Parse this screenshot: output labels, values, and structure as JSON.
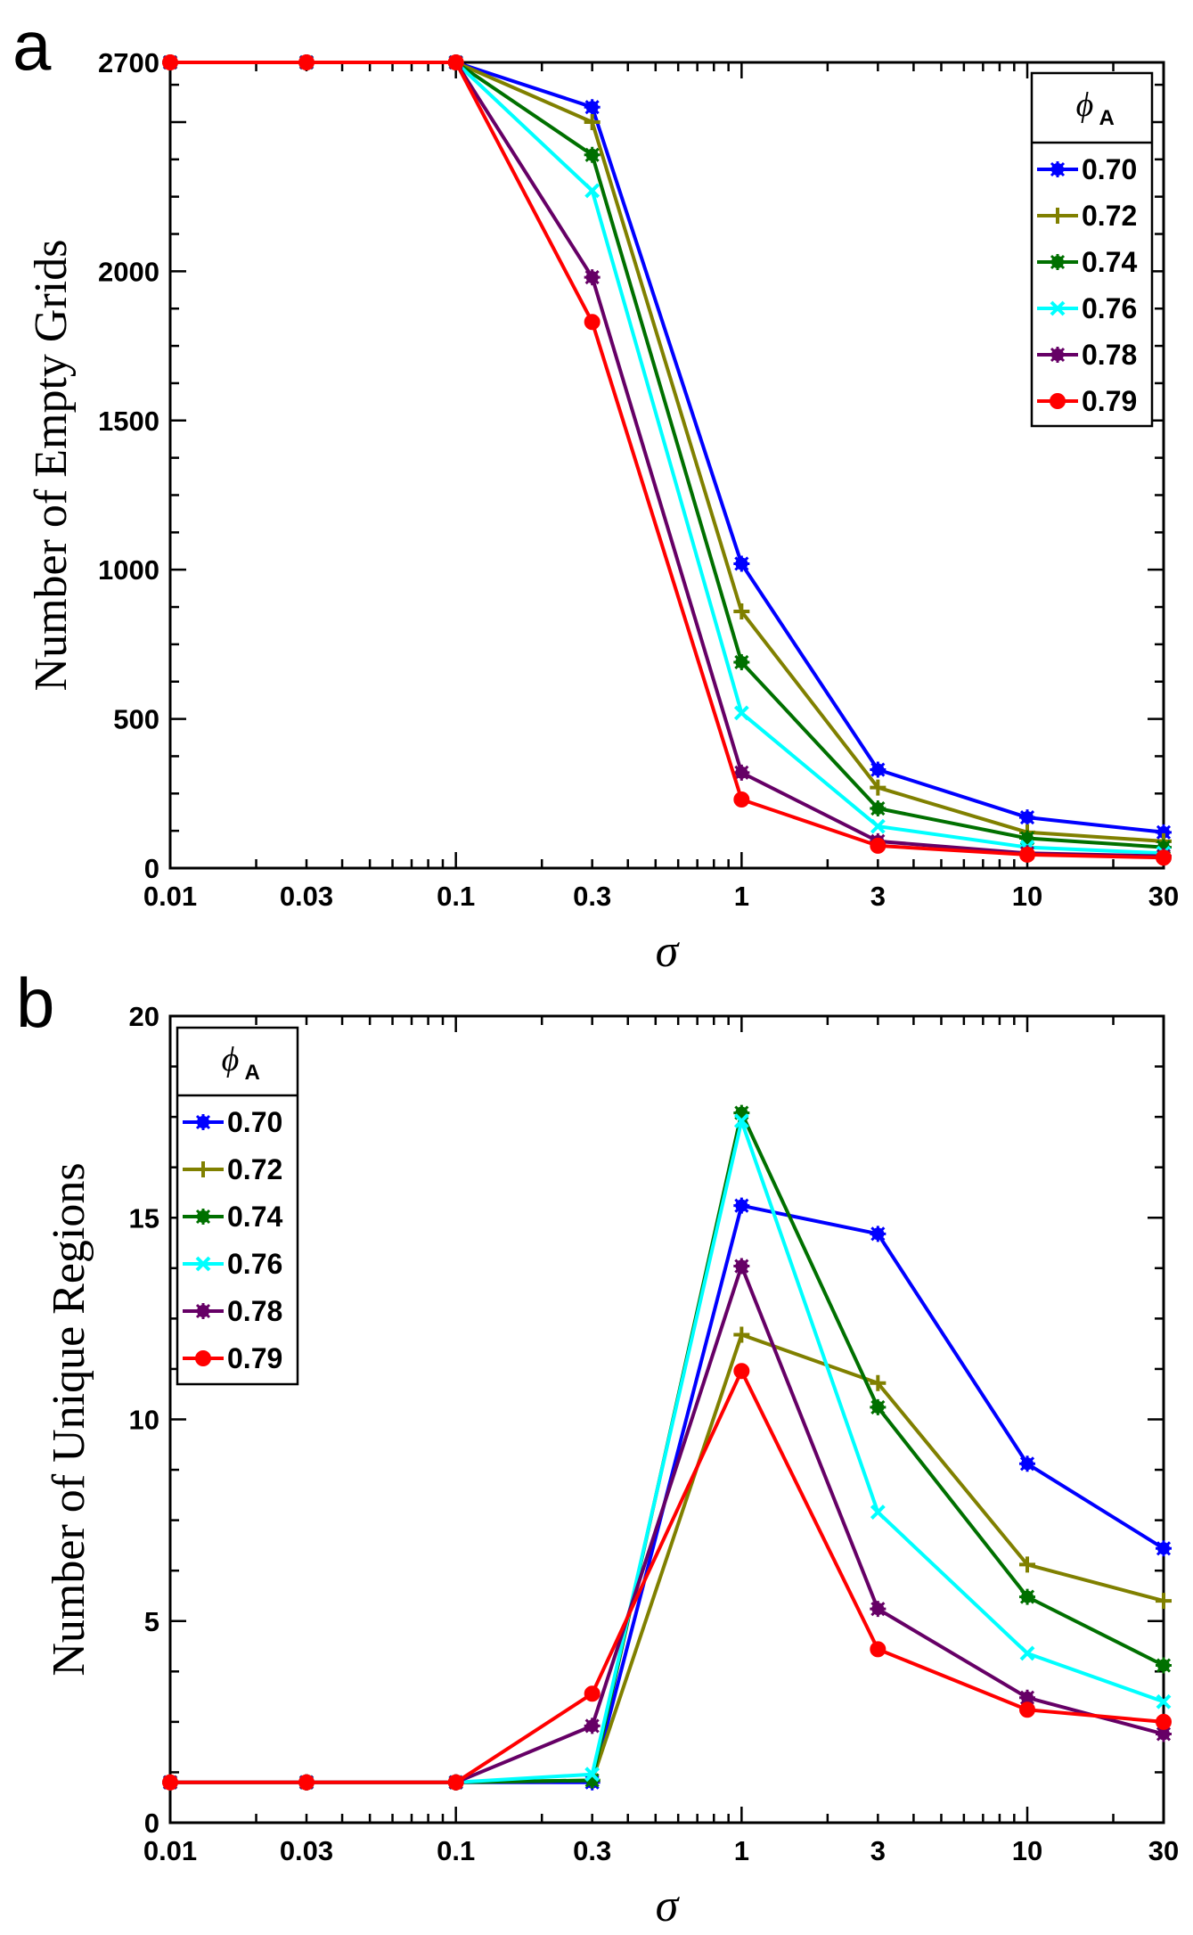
{
  "chart_data": [
    {
      "panel": "a",
      "type": "line",
      "xscale": "log",
      "x": [
        0.01,
        0.03,
        0.1,
        0.3,
        1,
        3,
        10,
        30
      ],
      "xticks": [
        "0.01",
        "0.03",
        "0.1",
        "0.3",
        "1",
        "3",
        "10",
        "30"
      ],
      "xlim": [
        0.01,
        30
      ],
      "ylim": [
        0,
        2700
      ],
      "yticks": [
        "0",
        "500",
        "1000",
        "1500",
        "2000",
        "2700"
      ],
      "ytick_values": [
        0,
        500,
        1000,
        1500,
        2000,
        2700
      ],
      "xlabel": "σ",
      "ylabel": "Number of Empty Grids",
      "legend": {
        "title": "ϕ",
        "title_sub": "A",
        "position": "top-right"
      },
      "series": [
        {
          "name": "0.70",
          "color": "#0000ff",
          "marker": "star",
          "values": [
            2700,
            2700,
            2700,
            2550,
            1020,
            330,
            170,
            120
          ]
        },
        {
          "name": "0.72",
          "color": "#808000",
          "marker": "plus",
          "values": [
            2700,
            2700,
            2700,
            2500,
            860,
            270,
            120,
            90
          ]
        },
        {
          "name": "0.74",
          "color": "#007000",
          "marker": "star",
          "values": [
            2700,
            2700,
            2700,
            2390,
            690,
            200,
            100,
            70
          ]
        },
        {
          "name": "0.76",
          "color": "#00ffff",
          "marker": "x",
          "values": [
            2700,
            2700,
            2700,
            2270,
            520,
            140,
            70,
            50
          ]
        },
        {
          "name": "0.78",
          "color": "#660066",
          "marker": "star",
          "values": [
            2700,
            2700,
            2700,
            1980,
            320,
            90,
            50,
            40
          ]
        },
        {
          "name": "0.79",
          "color": "#ff0000",
          "marker": "circle",
          "values": [
            2700,
            2700,
            2700,
            1830,
            230,
            75,
            45,
            35
          ]
        }
      ]
    },
    {
      "panel": "b",
      "type": "line",
      "xscale": "log",
      "x": [
        0.01,
        0.03,
        0.1,
        0.3,
        1,
        3,
        10,
        30
      ],
      "xticks": [
        "0.01",
        "0.03",
        "0.1",
        "0.3",
        "1",
        "3",
        "10",
        "30"
      ],
      "xlim": [
        0.01,
        30
      ],
      "ylim": [
        0,
        20
      ],
      "yticks": [
        "0",
        "5",
        "10",
        "15",
        "20"
      ],
      "ytick_values": [
        0,
        5,
        10,
        15,
        20
      ],
      "xlabel": "σ",
      "ylabel": "Number of Unique Regions",
      "legend": {
        "title": "ϕ",
        "title_sub": "A",
        "position": "top-left"
      },
      "series": [
        {
          "name": "0.70",
          "color": "#0000ff",
          "marker": "star",
          "values": [
            1,
            1,
            1,
            1,
            15.3,
            14.6,
            8.9,
            6.8
          ]
        },
        {
          "name": "0.72",
          "color": "#808000",
          "marker": "plus",
          "values": [
            1,
            1,
            1,
            1.05,
            12.1,
            10.9,
            6.4,
            5.5
          ]
        },
        {
          "name": "0.74",
          "color": "#007000",
          "marker": "star",
          "values": [
            1,
            1,
            1,
            1.05,
            17.6,
            10.3,
            5.6,
            3.9
          ]
        },
        {
          "name": "0.76",
          "color": "#00ffff",
          "marker": "x",
          "values": [
            1,
            1,
            1,
            1.2,
            17.4,
            7.7,
            4.2,
            3
          ]
        },
        {
          "name": "0.78",
          "color": "#660066",
          "marker": "star",
          "values": [
            1,
            1,
            1,
            2.4,
            13.8,
            5.3,
            3.1,
            2.2
          ]
        },
        {
          "name": "0.79",
          "color": "#ff0000",
          "marker": "circle",
          "values": [
            1,
            1,
            1,
            3.2,
            11.2,
            4.3,
            2.8,
            2.5
          ]
        }
      ]
    }
  ]
}
